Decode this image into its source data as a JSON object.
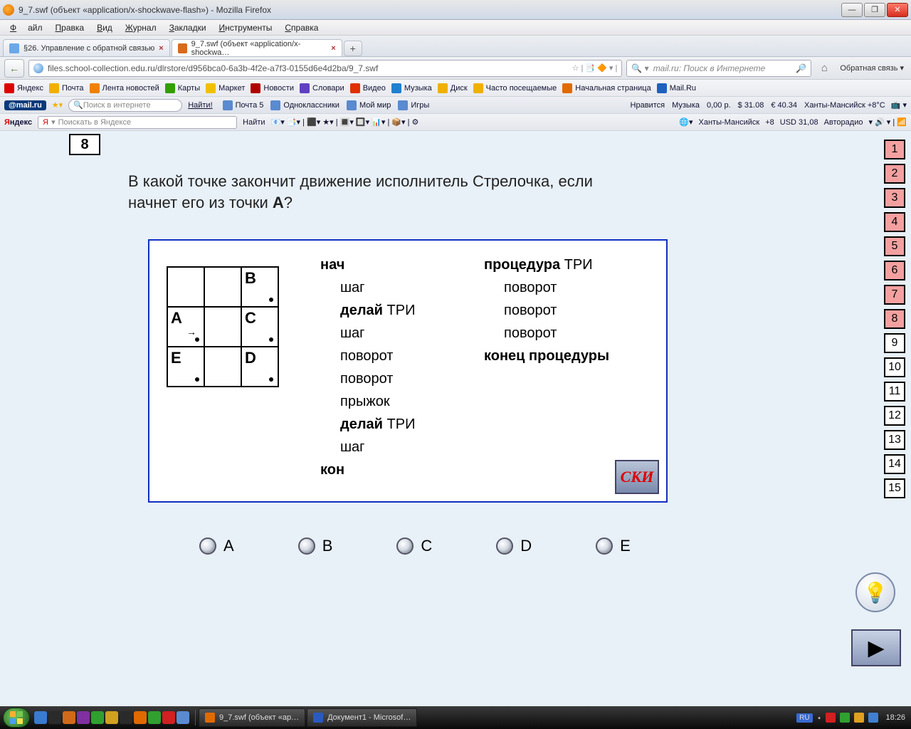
{
  "window": {
    "title": "9_7.swf (объект «application/x-shockwave-flash») - Mozilla Firefox"
  },
  "menu": {
    "file": "Файл",
    "edit": "Правка",
    "view": "Вид",
    "history": "Журнал",
    "bookmarks": "Закладки",
    "tools": "Инструменты",
    "help": "Справка"
  },
  "tabs": [
    {
      "label": "§26. Управление с обратной связью",
      "fav": "#6aa8e8"
    },
    {
      "label": "9_7.swf (объект «application/x-shockwa…",
      "fav": "#d86a1a",
      "active": true
    }
  ],
  "address": {
    "url": "files.school-collection.edu.ru/dlrstore/d956bca0-6a3b-4f2e-a7f3-0155d6e4d2ba/9_7.swf"
  },
  "search": {
    "placeholder": "mail.ru: Поиск в Интернете"
  },
  "feedback": "Обратная связь",
  "bookmarks": {
    "items": [
      {
        "ico": "#d00",
        "label": "Яндекс"
      },
      {
        "ico": "#f0b000",
        "label": "Почта"
      },
      {
        "ico": "#f08000",
        "label": "Лента новостей"
      },
      {
        "ico": "#30a000",
        "label": "Карты"
      },
      {
        "ico": "#f0c000",
        "label": "Маркет"
      },
      {
        "ico": "#b00000",
        "label": "Новости"
      },
      {
        "ico": "#6040c0",
        "label": "Словари"
      },
      {
        "ico": "#e03000",
        "label": "Видео"
      },
      {
        "ico": "#2080d0",
        "label": "Музыка"
      },
      {
        "ico": "#f0b000",
        "label": "Диск"
      },
      {
        "ico": "#f0b000",
        "label": "Часто посещаемые"
      },
      {
        "ico": "#e06a00",
        "label": "Начальная страница"
      },
      {
        "ico": "#2060c0",
        "label": "Mail.Ru"
      }
    ]
  },
  "mailbar": {
    "badge": "@mail.ru",
    "search_ph": "Поиск в интернете",
    "find": "Найти!",
    "items": [
      "Почта 5",
      "Одноклассники",
      "Мой мир",
      "Игры"
    ],
    "right": [
      "Нравится",
      "Музыка",
      "0,00 р.",
      "$ 31.08",
      "€ 40.34",
      "Ханты-Мансийск +8°C"
    ]
  },
  "yandexbar": {
    "logo_prefix": "Я",
    "logo_rest": "ндекс",
    "search_ph": "Поискать в Яндексе",
    "find": "Найти",
    "right": [
      "Ханты-Мансийск",
      "+8",
      "USD 31,08",
      "Авторадио"
    ]
  },
  "quiz": {
    "number": "8",
    "question_prefix": "В какой точке закончит движение исполнитель Стрелочка, если начнет его из точки ",
    "question_bold": "A",
    "question_suffix": "?",
    "grid": {
      "B": "B.",
      "A": "A.",
      "C": "C.",
      "E": "E.",
      "D": "D."
    },
    "code_left": [
      {
        "t": "нач",
        "bold": true
      },
      {
        "t": "шаг",
        "indent": true
      },
      {
        "t_bold": "делай",
        "t_rest": " ТРИ",
        "indent": true
      },
      {
        "t": "шаг",
        "indent": true
      },
      {
        "t": "поворот",
        "indent": true
      },
      {
        "t": "поворот",
        "indent": true
      },
      {
        "t": "прыжок",
        "indent": true
      },
      {
        "t_bold": "делай",
        "t_rest": " ТРИ",
        "indent": true
      },
      {
        "t": "шаг",
        "indent": true
      },
      {
        "t": "кон",
        "bold": true
      }
    ],
    "code_right": [
      {
        "t_bold": "процедура",
        "t_rest": " ТРИ"
      },
      {
        "t": "поворот",
        "indent": true
      },
      {
        "t": "поворот",
        "indent": true
      },
      {
        "t": "поворот",
        "indent": true
      },
      {
        "t": "конец процедуры",
        "bold": true
      }
    ],
    "ski": "СКИ",
    "answers": [
      "A",
      "B",
      "C",
      "D",
      "E"
    ],
    "nav_total": 15,
    "nav_done_upto": 8
  },
  "taskbar": {
    "items": [
      {
        "ico": "#e06a00",
        "label": "9_7.swf (объект «ap…"
      },
      {
        "ico": "#2a5ac0",
        "label": "Документ1 - Microsof…"
      }
    ],
    "lang": "RU",
    "clock": "18:26"
  }
}
